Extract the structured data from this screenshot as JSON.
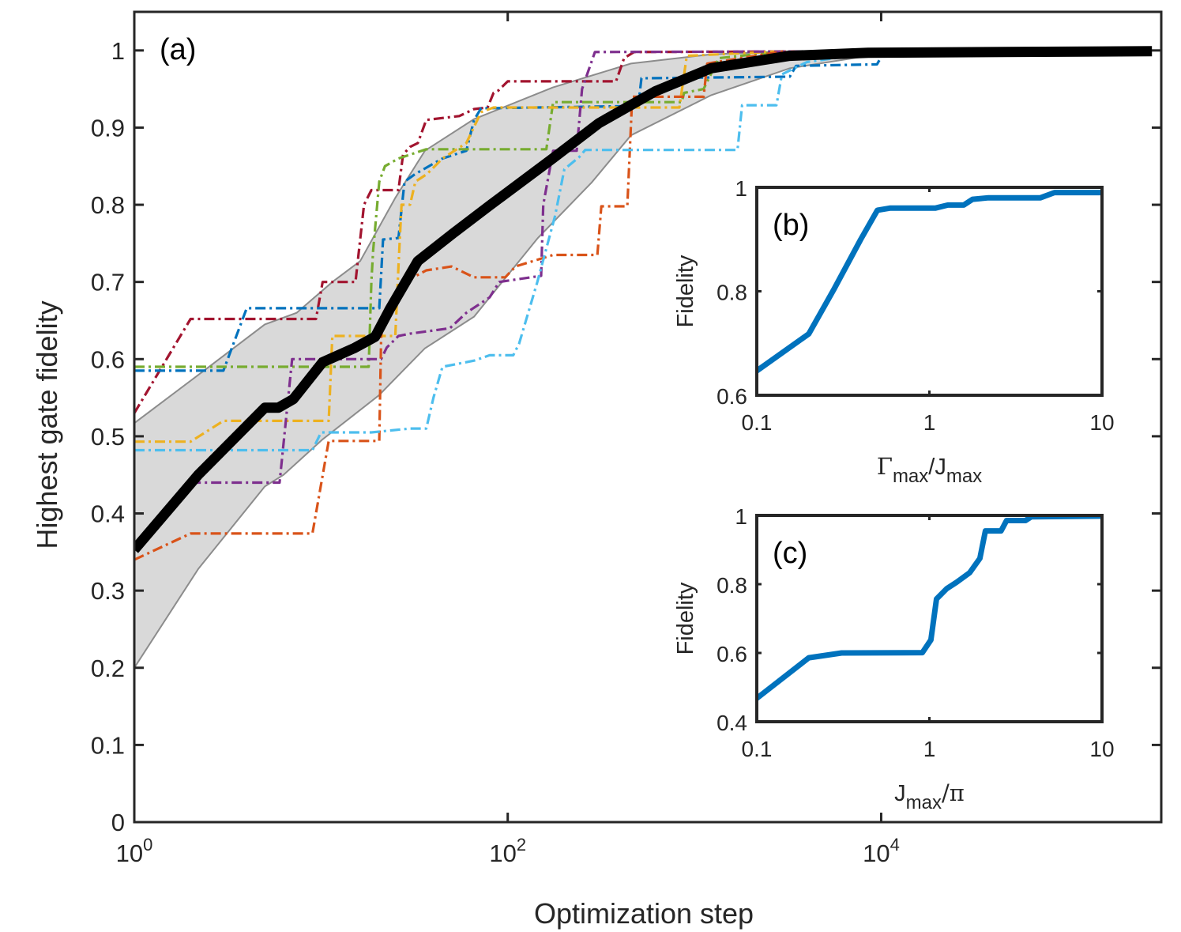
{
  "chart_data": [
    {
      "type": "line",
      "panel_label": "(a)",
      "xlabel": "Optimization step",
      "ylabel": "Highest gate fidelity",
      "xscale": "log",
      "xlim": [
        1,
        316228
      ],
      "ylim": [
        0,
        1.05
      ],
      "xticks": [
        1,
        100,
        10000
      ],
      "xticklabels": [
        {
          "base": "10",
          "exp": "0"
        },
        {
          "base": "10",
          "exp": "2"
        },
        {
          "base": "10",
          "exp": "4"
        }
      ],
      "yticks": [
        0,
        0.1,
        0.2,
        0.3,
        0.4,
        0.5,
        0.6,
        0.7,
        0.8,
        0.9,
        1
      ],
      "yticklabels": [
        "0",
        "0.1",
        "0.2",
        "0.3",
        "0.4",
        "0.5",
        "0.6",
        "0.7",
        "0.8",
        "0.9",
        "1"
      ],
      "band": {
        "color": "#d9d9d9",
        "edge_color": "#8c8c8c",
        "upper": {
          "x": [
            1,
            2.3,
            5,
            7.4,
            11.5,
            16.2,
            25,
            36,
            66,
            174,
            457,
            1230,
            3236,
            282000
          ],
          "y": [
            0.517,
            0.583,
            0.645,
            0.66,
            0.7,
            0.727,
            0.809,
            0.87,
            0.911,
            0.952,
            0.983,
            0.995,
            0.999,
            0.999
          ]
        },
        "lower": {
          "x": [
            1,
            2.2,
            5,
            6.3,
            10.2,
            20.4,
            36,
            66,
            145,
            282,
            457,
            1230,
            3240,
            8510,
            22900,
            282000
          ],
          "y": [
            0.2,
            0.328,
            0.435,
            0.45,
            0.496,
            0.553,
            0.614,
            0.655,
            0.757,
            0.829,
            0.89,
            0.942,
            0.977,
            0.993,
            0.999,
            0.999
          ]
        }
      },
      "mean": {
        "color": "#000000",
        "x": [
          1,
          2.2,
          5,
          5.9,
          7.1,
          10.2,
          15,
          19.5,
          23.4,
          33,
          51,
          79,
          174,
          309,
          617,
          1230,
          3236,
          8511,
          282000
        ],
        "y": [
          0.353,
          0.45,
          0.537,
          0.537,
          0.548,
          0.596,
          0.614,
          0.629,
          0.665,
          0.727,
          0.763,
          0.798,
          0.86,
          0.906,
          0.947,
          0.977,
          0.993,
          0.997,
          0.999
        ]
      },
      "series": [
        {
          "name": "run-darkred",
          "color": "#A2142F",
          "x": [
            1,
            2,
            9.4,
            10.2,
            15.3,
            17,
            18.6,
            26,
            27.5,
            30,
            33,
            36.6,
            55,
            66,
            78,
            84,
            89,
            100,
            380,
            420,
            475,
            10000
          ],
          "y": [
            0.53,
            0.652,
            0.652,
            0.7,
            0.7,
            0.8,
            0.819,
            0.819,
            0.865,
            0.875,
            0.88,
            0.91,
            0.915,
            0.924,
            0.926,
            0.945,
            0.948,
            0.96,
            0.96,
            0.99,
            0.998,
            0.999
          ]
        },
        {
          "name": "run-blue",
          "color": "#0072BD",
          "x": [
            1,
            3,
            4,
            20.5,
            21.5,
            26,
            28,
            32,
            44.7,
            60,
            66,
            72,
            500,
            520,
            3240,
            3500,
            9500,
            10400
          ],
          "y": [
            0.585,
            0.585,
            0.666,
            0.666,
            0.755,
            0.757,
            0.83,
            0.84,
            0.86,
            0.87,
            0.91,
            0.925,
            0.928,
            0.964,
            0.966,
            0.98,
            0.982,
            0.999
          ]
        },
        {
          "name": "run-green",
          "color": "#77AC30",
          "x": [
            1,
            18,
            18.6,
            19,
            20.5,
            22,
            26,
            36.6,
            161,
            175,
            855,
            880,
            1120,
            1350,
            3000
          ],
          "y": [
            0.59,
            0.59,
            0.7,
            0.74,
            0.83,
            0.85,
            0.86,
            0.872,
            0.872,
            0.933,
            0.933,
            0.945,
            0.95,
            0.99,
            0.999
          ]
        },
        {
          "name": "run-yellow",
          "color": "#EDB120",
          "x": [
            1,
            2,
            3,
            11,
            11.5,
            25,
            26,
            27,
            30,
            32,
            37,
            44.7,
            60,
            72,
            84,
            830,
            910,
            3000
          ],
          "y": [
            0.493,
            0.493,
            0.52,
            0.52,
            0.63,
            0.63,
            0.72,
            0.8,
            0.8,
            0.83,
            0.84,
            0.86,
            0.88,
            0.92,
            0.926,
            0.926,
            0.993,
            0.999
          ]
        },
        {
          "name": "run-purple",
          "color": "#7E2F8E",
          "x": [
            2,
            6,
            7,
            21,
            22.5,
            26,
            30,
            49,
            60,
            80,
            90,
            151,
            155,
            175,
            234,
            250,
            293,
            10000
          ],
          "y": [
            0.44,
            0.44,
            0.6,
            0.6,
            0.615,
            0.63,
            0.633,
            0.64,
            0.66,
            0.68,
            0.7,
            0.708,
            0.8,
            0.87,
            0.87,
            0.95,
            0.998,
            0.999
          ]
        },
        {
          "name": "run-orange",
          "color": "#D95319",
          "x": [
            1,
            2,
            9,
            11,
            20.5,
            21,
            22,
            25,
            28,
            36.6,
            50,
            66,
            97,
            110,
            175,
            302,
            317,
            437,
            464,
            1120,
            1170,
            3000
          ],
          "y": [
            0.34,
            0.374,
            0.374,
            0.494,
            0.494,
            0.63,
            0.66,
            0.68,
            0.7,
            0.715,
            0.72,
            0.706,
            0.706,
            0.72,
            0.735,
            0.735,
            0.798,
            0.798,
            0.94,
            0.94,
            0.983,
            0.999
          ]
        },
        {
          "name": "run-lightblue",
          "color": "#4DBEEE",
          "x": [
            1,
            9,
            10,
            18.6,
            30,
            36.6,
            40,
            44.7,
            66,
            80,
            107,
            115,
            144,
            179,
            201,
            242,
            260,
            1700,
            1800,
            2750,
            2940,
            4000,
            10400
          ],
          "y": [
            0.482,
            0.482,
            0.505,
            0.505,
            0.51,
            0.51,
            0.55,
            0.59,
            0.598,
            0.605,
            0.605,
            0.62,
            0.7,
            0.785,
            0.846,
            0.862,
            0.871,
            0.871,
            0.929,
            0.929,
            0.969,
            0.985,
            0.999
          ]
        }
      ]
    },
    {
      "type": "line",
      "panel_label": "(b)",
      "ylabel": "Fidelity",
      "xlabel_parts": [
        "Γ",
        "max",
        "/J",
        "max"
      ],
      "xscale": "log",
      "xlim": [
        0.1,
        10
      ],
      "ylim": [
        0.6,
        1
      ],
      "xticks": [
        0.1,
        1,
        10
      ],
      "xticklabels": [
        "0.1",
        "1",
        "10"
      ],
      "yticks": [
        0.6,
        0.8,
        1
      ],
      "yticklabels": [
        "0.6",
        "0.8",
        "1"
      ],
      "series": [
        {
          "name": "fidelity",
          "color": "#0072BD",
          "x": [
            0.1,
            0.2,
            0.28,
            0.4,
            0.5,
            0.59,
            1.08,
            1.28,
            1.58,
            1.78,
            2.2,
            4.4,
            5.3,
            10
          ],
          "y": [
            0.647,
            0.718,
            0.804,
            0.9,
            0.956,
            0.96,
            0.96,
            0.966,
            0.966,
            0.977,
            0.98,
            0.98,
            0.99,
            0.99
          ]
        }
      ]
    },
    {
      "type": "line",
      "panel_label": "(c)",
      "ylabel": "Fidelity",
      "xlabel_parts": [
        "J",
        "max",
        "/π",
        ""
      ],
      "xscale": "log",
      "xlim": [
        0.1,
        10
      ],
      "ylim": [
        0.4,
        1
      ],
      "xticks": [
        0.1,
        1,
        10
      ],
      "xticklabels": [
        "0.1",
        "1",
        "10"
      ],
      "yticks": [
        0.4,
        0.6,
        0.8,
        1
      ],
      "yticklabels": [
        "0.4",
        "0.6",
        "0.8",
        "1"
      ],
      "series": [
        {
          "name": "fidelity",
          "color": "#0072BD",
          "x": [
            0.1,
            0.2,
            0.31,
            0.91,
            1.02,
            1.1,
            1.26,
            1.44,
            1.71,
            1.96,
            2.11,
            2.6,
            2.8,
            3.6,
            3.9,
            10
          ],
          "y": [
            0.468,
            0.586,
            0.6,
            0.601,
            0.638,
            0.757,
            0.787,
            0.806,
            0.833,
            0.875,
            0.955,
            0.955,
            0.985,
            0.985,
            0.996,
            0.998
          ]
        }
      ]
    }
  ]
}
